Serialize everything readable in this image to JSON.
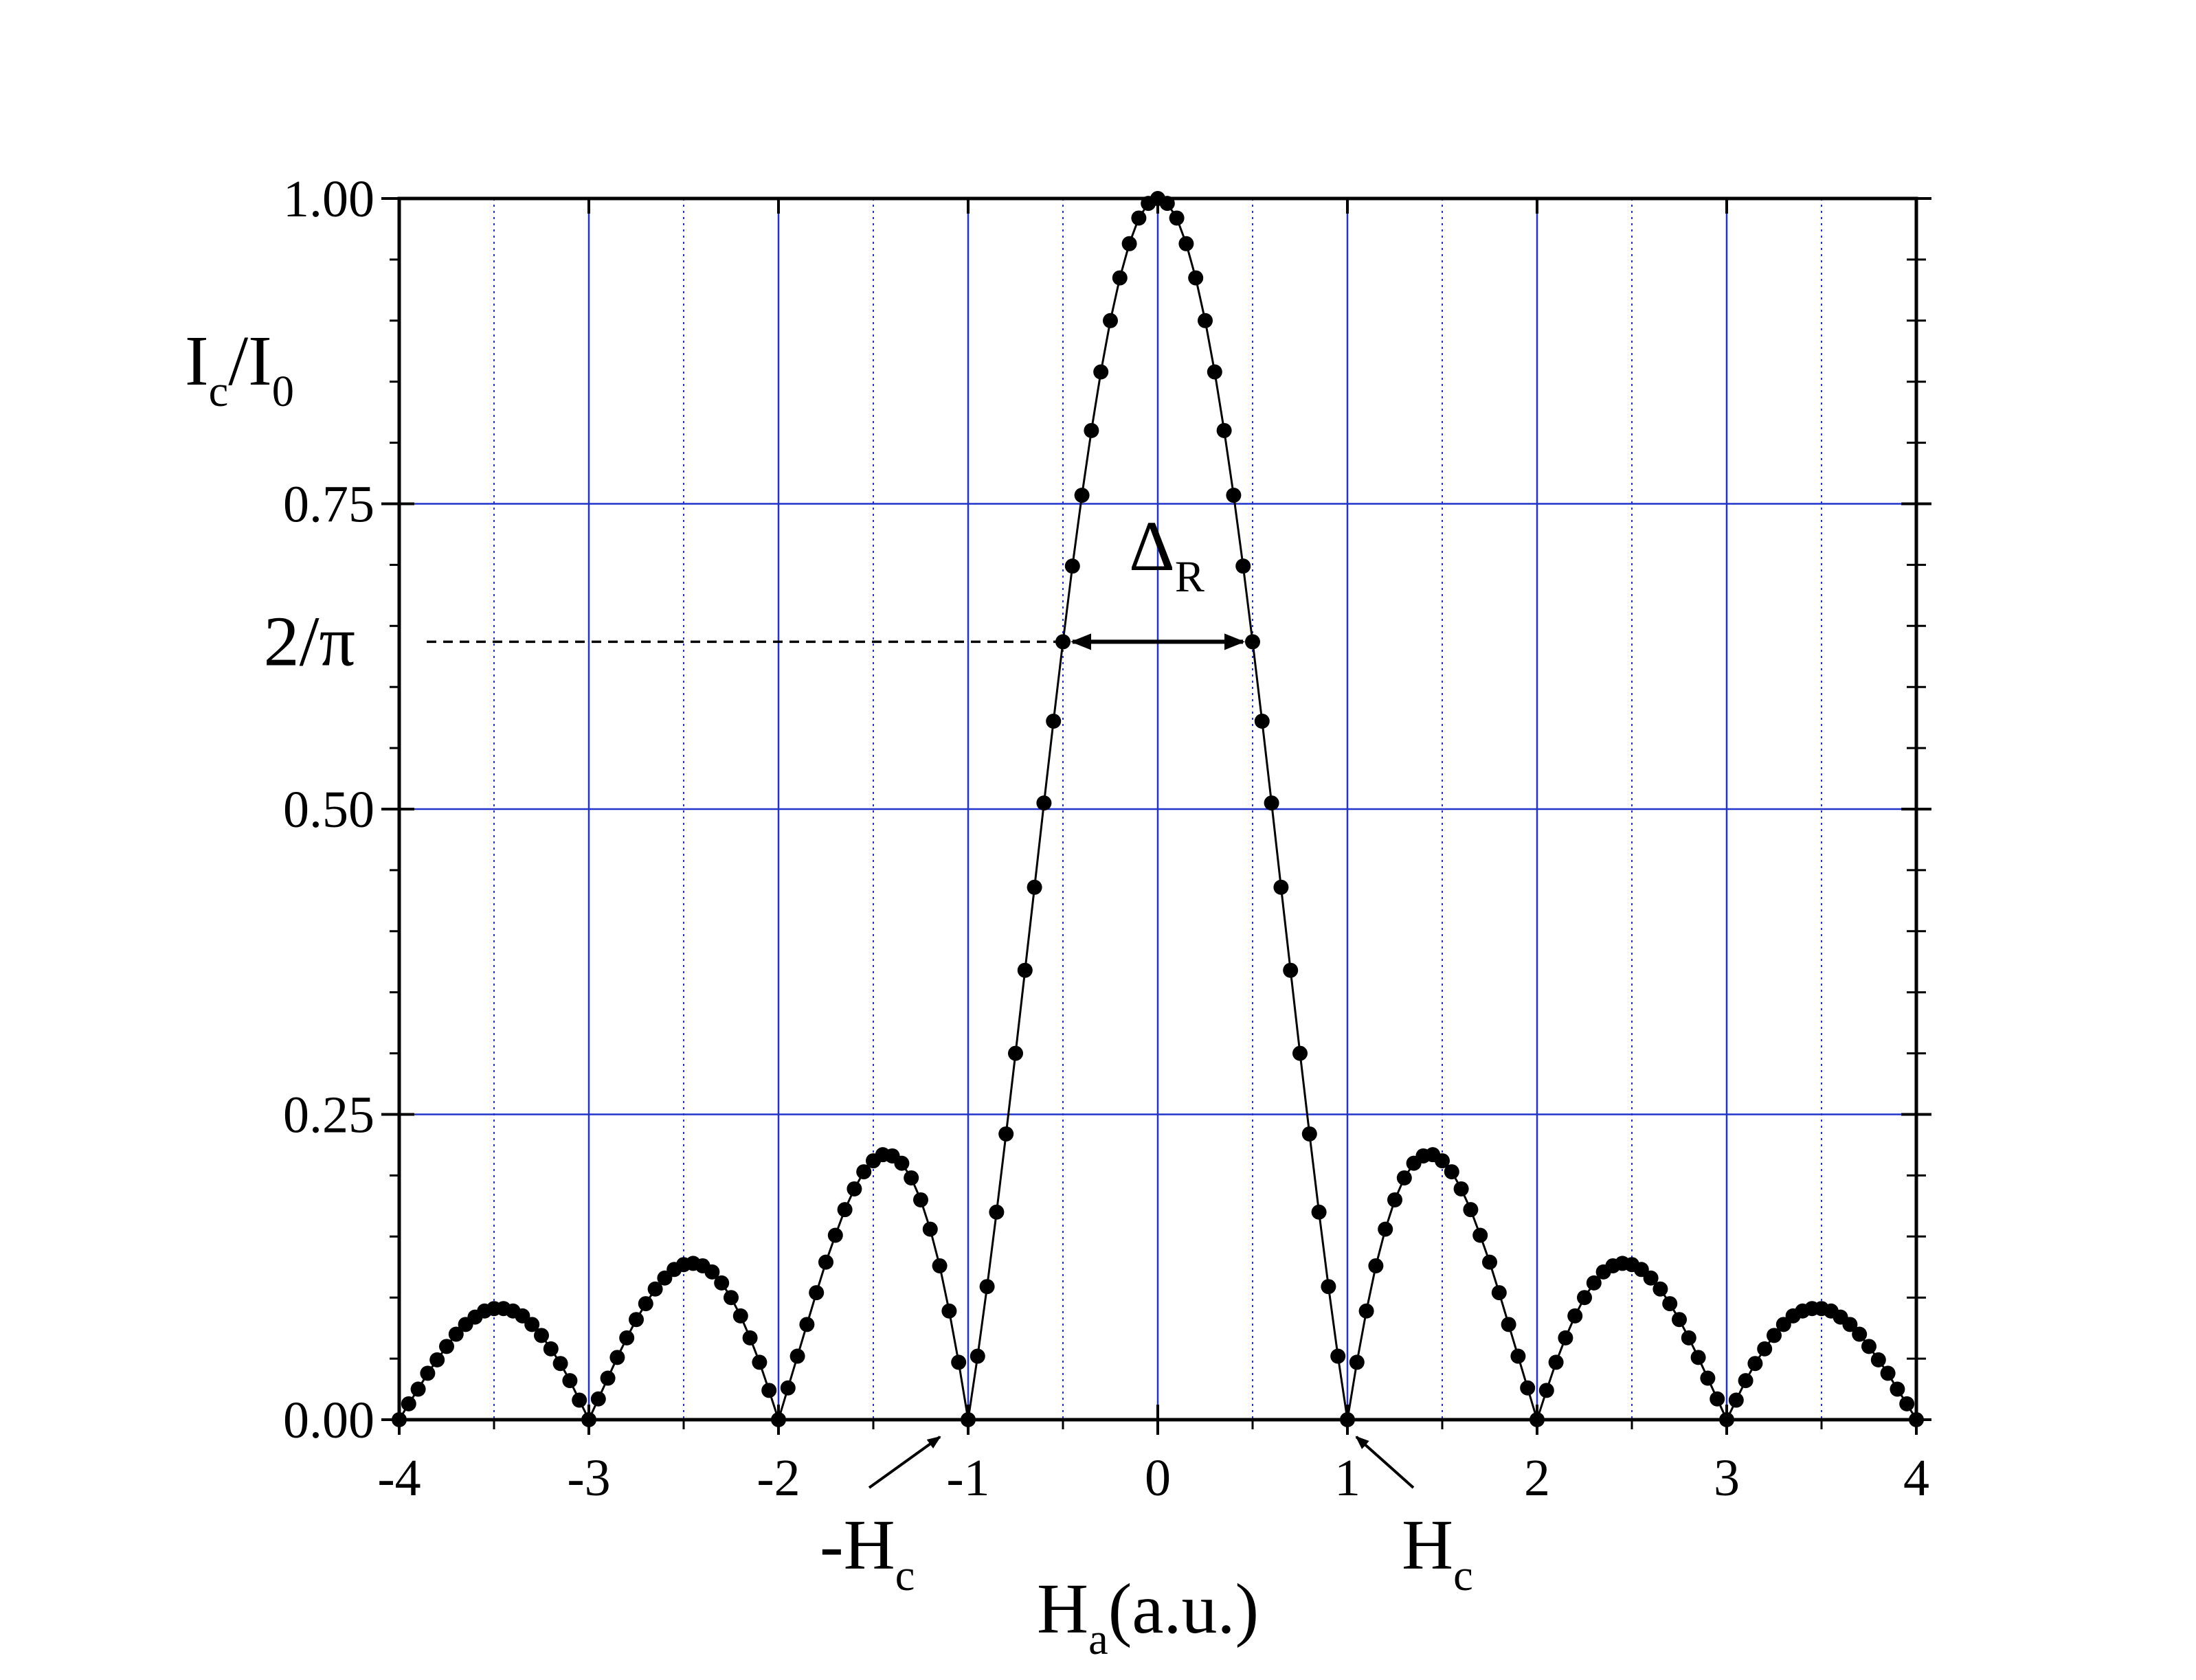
{
  "chart_data": {
    "type": "scatter",
    "y_label": [
      {
        "text": "I"
      },
      {
        "text": "c",
        "sub": true
      },
      {
        "text": "/I"
      },
      {
        "text": "0",
        "sub": true
      }
    ],
    "x_label": [
      {
        "text": "H"
      },
      {
        "text": "a",
        "sub": true
      },
      {
        "text": "(a.u.)"
      }
    ],
    "x": [
      -4,
      -3.95,
      -3.9,
      -3.85,
      -3.8,
      -3.75,
      -3.7,
      -3.65,
      -3.6,
      -3.55,
      -3.5,
      -3.45,
      -3.4,
      -3.35,
      -3.3,
      -3.25,
      -3.2,
      -3.15,
      -3.1,
      -3.05,
      -3,
      -2.95,
      -2.9,
      -2.85,
      -2.8,
      -2.75,
      -2.7,
      -2.65,
      -2.6,
      -2.55,
      -2.5,
      -2.45,
      -2.4,
      -2.35,
      -2.3,
      -2.25,
      -2.2,
      -2.15,
      -2.1,
      -2.05,
      -2,
      -1.95,
      -1.9,
      -1.85,
      -1.8,
      -1.75,
      -1.7,
      -1.65,
      -1.6,
      -1.55,
      -1.5,
      -1.45,
      -1.4,
      -1.35,
      -1.3,
      -1.25,
      -1.2,
      -1.15,
      -1.1,
      -1.05,
      -1,
      -0.95,
      -0.9,
      -0.85,
      -0.8,
      -0.75,
      -0.7,
      -0.65,
      -0.6,
      -0.55,
      -0.5,
      -0.45,
      -0.4,
      -0.35,
      -0.3,
      -0.25,
      -0.2,
      -0.15,
      -0.1,
      -0.05,
      0,
      0.05,
      0.1,
      0.15,
      0.2,
      0.25,
      0.3,
      0.35,
      0.4,
      0.45,
      0.5,
      0.55,
      0.6,
      0.65,
      0.7,
      0.75,
      0.8,
      0.85,
      0.9,
      0.95,
      1,
      1.05,
      1.1,
      1.15,
      1.2,
      1.25,
      1.3,
      1.35,
      1.4,
      1.45,
      1.5,
      1.55,
      1.6,
      1.65,
      1.7,
      1.75,
      1.8,
      1.85,
      1.9,
      1.95,
      2,
      2.05,
      2.1,
      2.15,
      2.2,
      2.25,
      2.3,
      2.35,
      2.4,
      2.45,
      2.5,
      2.55,
      2.6,
      2.65,
      2.7,
      2.75,
      2.8,
      2.85,
      2.9,
      2.95,
      3,
      3.05,
      3.1,
      3.15,
      3.2,
      3.25,
      3.3,
      3.35,
      3.4,
      3.45,
      3.5,
      3.55,
      3.6,
      3.65,
      3.7,
      3.75,
      3.8,
      3.85,
      3.9,
      3.95,
      4
    ],
    "series": [
      {
        "color": "#000000",
        "values": [
          0,
          0.013,
          0.025,
          0.038,
          0.049,
          0.06,
          0.07,
          0.078,
          0.084,
          0.089,
          0.091,
          0.091,
          0.089,
          0.085,
          0.078,
          0.069,
          0.058,
          0.046,
          0.032,
          0.016,
          0,
          0.017,
          0.034,
          0.051,
          0.067,
          0.082,
          0.095,
          0.107,
          0.116,
          0.123,
          0.127,
          0.128,
          0.126,
          0.121,
          0.112,
          0.1,
          0.085,
          0.067,
          0.047,
          0.024,
          0,
          0.026,
          0.052,
          0.078,
          0.104,
          0.129,
          0.151,
          0.172,
          0.189,
          0.203,
          0.212,
          0.217,
          0.216,
          0.21,
          0.198,
          0.18,
          0.156,
          0.126,
          0.089,
          0.047,
          0,
          0.052,
          0.109,
          0.17,
          0.234,
          0.3,
          0.368,
          0.436,
          0.505,
          0.572,
          0.637,
          0.699,
          0.757,
          0.81,
          0.858,
          0.9,
          0.935,
          0.963,
          0.984,
          0.996,
          1,
          0.996,
          0.984,
          0.963,
          0.935,
          0.9,
          0.858,
          0.81,
          0.757,
          0.699,
          0.637,
          0.572,
          0.505,
          0.436,
          0.368,
          0.3,
          0.234,
          0.17,
          0.109,
          0.052,
          0,
          0.047,
          0.089,
          0.126,
          0.156,
          0.18,
          0.198,
          0.21,
          0.216,
          0.217,
          0.212,
          0.203,
          0.189,
          0.172,
          0.151,
          0.129,
          0.104,
          0.078,
          0.052,
          0.026,
          0,
          0.024,
          0.047,
          0.067,
          0.085,
          0.1,
          0.112,
          0.121,
          0.126,
          0.128,
          0.127,
          0.123,
          0.116,
          0.107,
          0.095,
          0.082,
          0.067,
          0.051,
          0.034,
          0.017,
          0,
          0.016,
          0.032,
          0.046,
          0.058,
          0.069,
          0.078,
          0.085,
          0.089,
          0.091,
          0.091,
          0.089,
          0.084,
          0.078,
          0.07,
          0.06,
          0.049,
          0.038,
          0.025,
          0.013,
          0
        ]
      }
    ],
    "xlim": [
      -4,
      4
    ],
    "ylim": [
      0,
      1
    ],
    "xticks": [
      -4,
      -3,
      -2,
      -1,
      0,
      1,
      2,
      3,
      4
    ],
    "yticks": [
      {
        "value": 0,
        "label": "0.00"
      },
      {
        "value": 0.25,
        "label": "0.25"
      },
      {
        "value": 0.5,
        "label": "0.50"
      },
      {
        "value": 0.75,
        "label": "0.75"
      },
      {
        "value": 1,
        "label": "1.00"
      }
    ],
    "x_minor_ticks": [
      -3.5,
      -2.5,
      -1.5,
      -0.5,
      0.5,
      1.5,
      2.5,
      3.5
    ],
    "y_minor_ticks": [
      0.05,
      0.1,
      0.15,
      0.2,
      0.3,
      0.35,
      0.4,
      0.45,
      0.55,
      0.6,
      0.65,
      0.7,
      0.8,
      0.85,
      0.9,
      0.95
    ],
    "grid": true,
    "grid_color": "#2233cc",
    "reference_line": {
      "value": 0.637,
      "label": "2/π"
    },
    "width_label": [
      {
        "text": "Δ"
      },
      {
        "text": "R",
        "sub": true
      }
    ],
    "left_marker_label": [
      {
        "text": "-H"
      },
      {
        "text": "c",
        "sub": true
      }
    ],
    "right_marker_label": [
      {
        "text": "H"
      },
      {
        "text": "c",
        "sub": true
      }
    ]
  }
}
